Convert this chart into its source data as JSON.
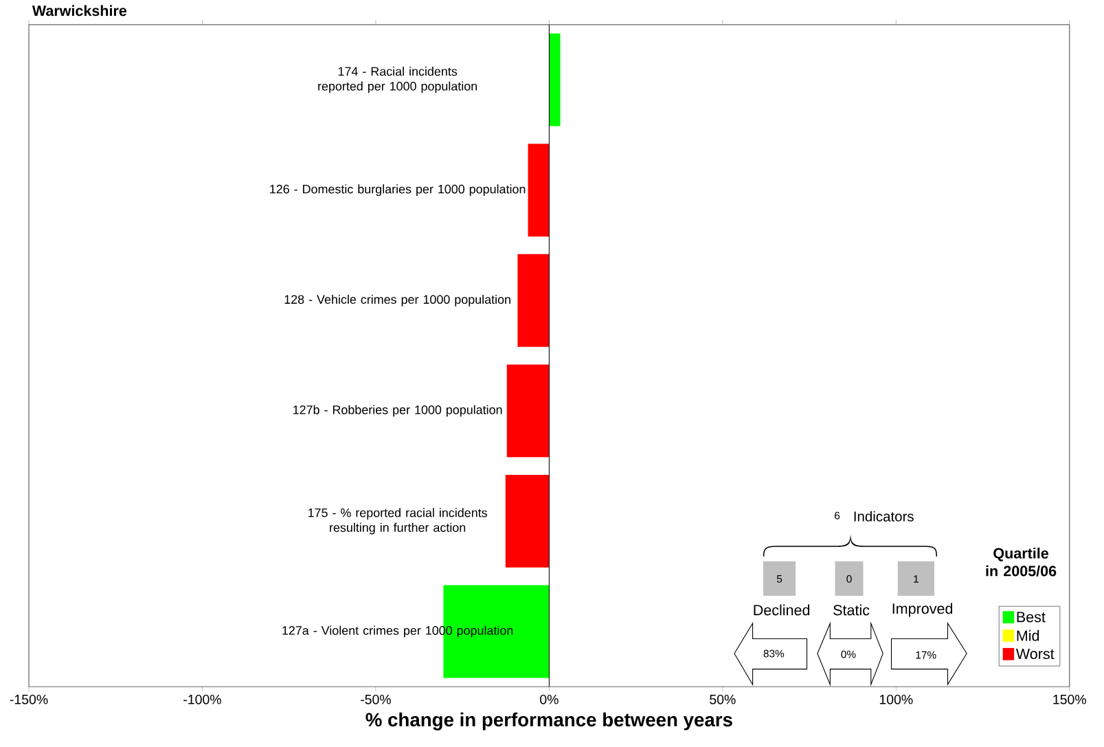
{
  "chart_data": {
    "type": "bar",
    "orientation": "horizontal",
    "stacked": true,
    "title": "Warwickshire",
    "xlabel": "% change in performance between years",
    "categories": [
      "174 - Racial incidents reported per 1000 population",
      "126 - Domestic burglaries per 1000 population",
      "128 - Vehicle crimes per 1000 population",
      "127b - Robberies per 1000 population",
      "175 - % reported racial incidents resulting in further action",
      "127a - Violent crimes per 1000 population"
    ],
    "series": [
      {
        "name": "Best",
        "color": "#00ff00",
        "values": [
          3.2,
          null,
          null,
          null,
          null,
          -30.5
        ]
      },
      {
        "name": "Mid",
        "color": "#ffff00",
        "values": [
          null,
          null,
          null,
          null,
          null,
          null
        ]
      },
      {
        "name": "Worst",
        "color": "#ff0000",
        "values": [
          null,
          -6.1,
          -9.1,
          -12.2,
          -12.6,
          null
        ]
      }
    ],
    "xlim": [
      -150,
      150
    ],
    "xticks": [
      {
        "value": -150,
        "label": "-150%"
      },
      {
        "value": -100,
        "label": "-100%"
      },
      {
        "value": -50,
        "label": "-50%"
      },
      {
        "value": 0,
        "label": "0%"
      },
      {
        "value": 50,
        "label": "50%"
      },
      {
        "value": 100,
        "label": "100%"
      },
      {
        "value": 150,
        "label": "150%"
      }
    ],
    "legend": "bottom right",
    "legend_title": "Quartile in 2005/06",
    "grid": false,
    "annotations": [
      "6",
      "Indicators",
      "5",
      "0",
      "1",
      "Declined",
      "Static",
      "Improved",
      "83%",
      "0%",
      "17%"
    ]
  }
}
